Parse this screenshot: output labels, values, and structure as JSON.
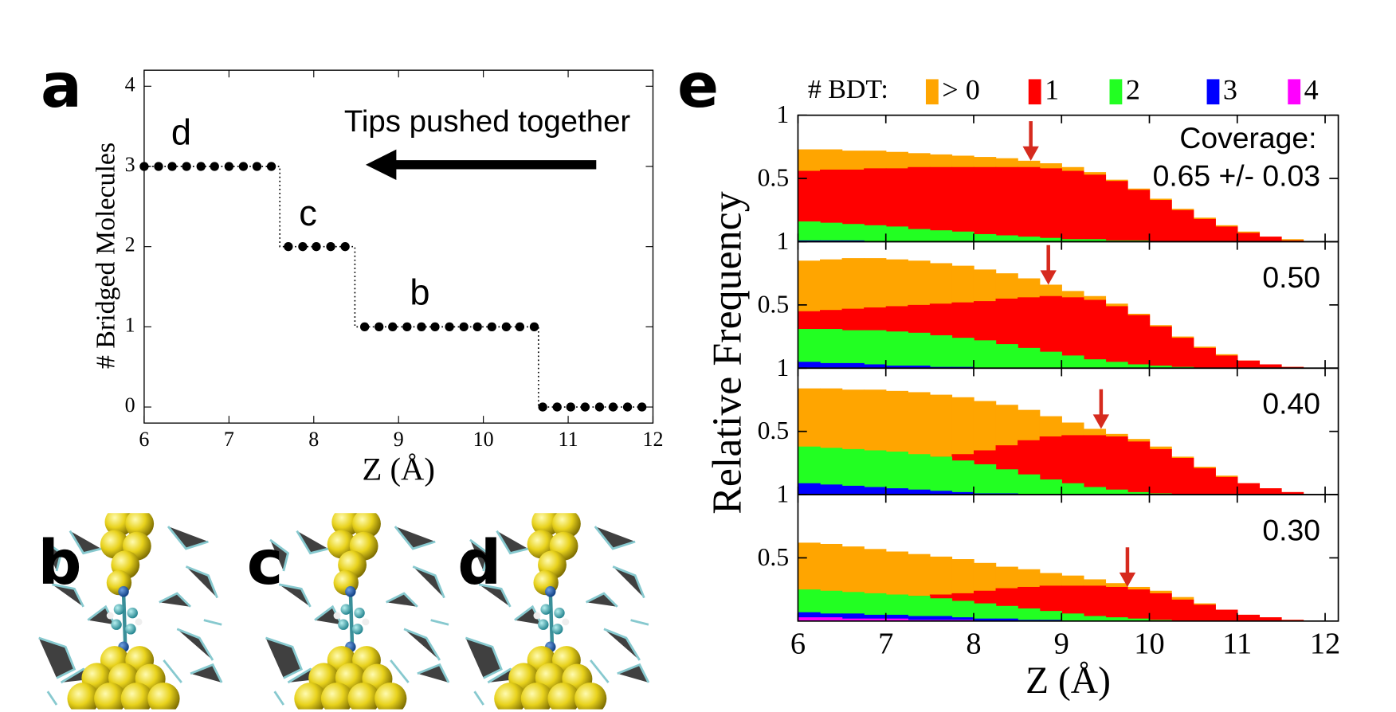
{
  "chart_data": [
    {
      "type": "step",
      "panel_label": "a",
      "xlabel": "Z (Å)",
      "ylabel": "# Bridged Molecules",
      "annotations": [
        "d",
        "c",
        "b",
        "Tips pushed together"
      ],
      "x": [
        6.0,
        6.17,
        6.33,
        6.5,
        6.67,
        6.83,
        7.0,
        7.17,
        7.33,
        7.5,
        7.7,
        7.87,
        8.03,
        8.2,
        8.37,
        8.6,
        8.77,
        8.93,
        9.1,
        9.27,
        9.43,
        9.6,
        9.77,
        9.93,
        10.1,
        10.27,
        10.43,
        10.6,
        10.7,
        10.87,
        11.03,
        11.2,
        11.37,
        11.53,
        11.7,
        11.87
      ],
      "values": [
        3,
        3,
        3,
        3,
        3,
        3,
        3,
        3,
        3,
        3,
        2,
        2,
        2,
        2,
        2,
        1,
        1,
        1,
        1,
        1,
        1,
        1,
        1,
        1,
        1,
        1,
        1,
        1,
        0,
        0,
        0,
        0,
        0,
        0,
        0,
        0
      ],
      "color": "#000000",
      "xlim": [
        6,
        12
      ],
      "ylim": [
        -0.2,
        4.2
      ],
      "xticks": [
        6,
        7,
        8,
        9,
        10,
        11,
        12
      ],
      "yticks": [
        0,
        1,
        2,
        3,
        4
      ]
    },
    {
      "type": "histogram",
      "panel_label": "e",
      "legend_title": "# BDT:",
      "xlabel": "Z (Å)",
      "ylabel": "Relative Frequency",
      "bins": [
        6,
        6.25,
        6.5,
        6.75,
        7,
        7.25,
        7.5,
        7.75,
        8,
        8.25,
        8.5,
        8.75,
        9,
        9.25,
        9.5,
        9.75,
        10,
        10.25,
        10.5,
        10.75,
        11,
        11.25,
        11.5,
        11.75,
        12
      ],
      "series": [
        {
          "name": "> 0",
          "color": "#ffa500"
        },
        {
          "name": "1",
          "color": "#ff0000"
        },
        {
          "name": "2",
          "color": "#22ff22"
        },
        {
          "name": "3",
          "color": "#0000ff"
        },
        {
          "name": "4",
          "color": "#ff00ff"
        }
      ],
      "xlim": [
        6,
        12.15
      ],
      "ylim": [
        0,
        1
      ],
      "xticks": [
        6,
        7,
        8,
        9,
        10,
        11,
        12
      ],
      "yticks": [
        0.5,
        1
      ],
      "arrow_color": "#d62a1e",
      "panels": [
        {
          "annotation": "Coverage:",
          "label": "0.65 +/- 0.03",
          "arrow_x": 8.65,
          "values": [
            [
              0.73,
              0.73,
              0.72,
              0.72,
              0.71,
              0.7,
              0.69,
              0.68,
              0.67,
              0.66,
              0.64,
              0.62,
              0.59,
              0.55,
              0.49,
              0.42,
              0.34,
              0.26,
              0.19,
              0.13,
              0.08,
              0.04,
              0.02,
              0.0
            ],
            [
              0.56,
              0.57,
              0.57,
              0.58,
              0.58,
              0.59,
              0.59,
              0.59,
              0.59,
              0.59,
              0.59,
              0.58,
              0.56,
              0.53,
              0.48,
              0.41,
              0.33,
              0.25,
              0.18,
              0.12,
              0.07,
              0.04,
              0.01,
              0.0
            ],
            [
              0.16,
              0.15,
              0.14,
              0.13,
              0.12,
              0.1,
              0.09,
              0.08,
              0.06,
              0.05,
              0.04,
              0.03,
              0.02,
              0.02,
              0.01,
              0.01,
              0,
              0,
              0,
              0,
              0,
              0,
              0,
              0
            ],
            [
              0.01,
              0.01,
              0.01,
              0,
              0,
              0,
              0,
              0,
              0,
              0,
              0,
              0,
              0,
              0,
              0,
              0,
              0,
              0,
              0,
              0,
              0,
              0,
              0,
              0
            ],
            [
              0,
              0,
              0,
              0,
              0,
              0,
              0,
              0,
              0,
              0,
              0,
              0,
              0,
              0,
              0,
              0,
              0,
              0,
              0,
              0,
              0,
              0,
              0,
              0
            ]
          ]
        },
        {
          "label": "0.50",
          "arrow_x": 8.85,
          "values": [
            [
              0.85,
              0.86,
              0.87,
              0.87,
              0.86,
              0.85,
              0.83,
              0.81,
              0.78,
              0.75,
              0.71,
              0.66,
              0.61,
              0.57,
              0.51,
              0.43,
              0.34,
              0.25,
              0.17,
              0.11,
              0.06,
              0.03,
              0.01,
              0.0
            ],
            [
              0.45,
              0.46,
              0.47,
              0.48,
              0.49,
              0.5,
              0.51,
              0.52,
              0.53,
              0.55,
              0.56,
              0.57,
              0.56,
              0.54,
              0.49,
              0.42,
              0.33,
              0.24,
              0.16,
              0.1,
              0.06,
              0.03,
              0.01,
              0.0
            ],
            [
              0.31,
              0.31,
              0.3,
              0.3,
              0.29,
              0.28,
              0.26,
              0.24,
              0.22,
              0.19,
              0.16,
              0.13,
              0.1,
              0.07,
              0.05,
              0.03,
              0.02,
              0.01,
              0,
              0,
              0,
              0,
              0,
              0
            ],
            [
              0.05,
              0.04,
              0.04,
              0.03,
              0.02,
              0.02,
              0.01,
              0.01,
              0,
              0,
              0,
              0,
              0,
              0,
              0,
              0,
              0,
              0,
              0,
              0,
              0,
              0,
              0,
              0
            ],
            [
              0,
              0,
              0,
              0,
              0,
              0,
              0,
              0,
              0,
              0,
              0,
              0,
              0,
              0,
              0,
              0,
              0,
              0,
              0,
              0,
              0,
              0,
              0,
              0
            ]
          ]
        },
        {
          "label": "0.40",
          "arrow_x": 9.45,
          "values": [
            [
              0.84,
              0.84,
              0.83,
              0.83,
              0.82,
              0.81,
              0.79,
              0.77,
              0.74,
              0.71,
              0.67,
              0.62,
              0.57,
              0.52,
              0.48,
              0.44,
              0.38,
              0.3,
              0.22,
              0.15,
              0.09,
              0.05,
              0.02,
              0.0
            ],
            [
              0.28,
              0.28,
              0.28,
              0.28,
              0.28,
              0.29,
              0.3,
              0.32,
              0.35,
              0.39,
              0.43,
              0.46,
              0.47,
              0.47,
              0.46,
              0.42,
              0.36,
              0.29,
              0.21,
              0.14,
              0.09,
              0.05,
              0.02,
              0.0
            ],
            [
              0.38,
              0.37,
              0.36,
              0.35,
              0.34,
              0.32,
              0.3,
              0.27,
              0.24,
              0.2,
              0.16,
              0.12,
              0.09,
              0.06,
              0.04,
              0.02,
              0.01,
              0,
              0,
              0,
              0,
              0,
              0,
              0
            ],
            [
              0.09,
              0.08,
              0.07,
              0.06,
              0.05,
              0.04,
              0.03,
              0.02,
              0.01,
              0.01,
              0,
              0,
              0,
              0,
              0,
              0,
              0,
              0,
              0,
              0,
              0,
              0,
              0,
              0
            ],
            [
              0,
              0,
              0,
              0,
              0,
              0,
              0,
              0,
              0,
              0,
              0,
              0,
              0,
              0,
              0,
              0,
              0,
              0,
              0,
              0,
              0,
              0,
              0,
              0
            ]
          ]
        },
        {
          "label": "0.30",
          "arrow_x": 9.75,
          "values": [
            [
              0.62,
              0.61,
              0.59,
              0.57,
              0.55,
              0.53,
              0.51,
              0.49,
              0.46,
              0.43,
              0.41,
              0.38,
              0.36,
              0.33,
              0.3,
              0.27,
              0.24,
              0.19,
              0.14,
              0.09,
              0.05,
              0.03,
              0.01,
              0.0
            ],
            [
              0.15,
              0.16,
              0.17,
              0.18,
              0.19,
              0.2,
              0.21,
              0.22,
              0.24,
              0.26,
              0.27,
              0.28,
              0.28,
              0.28,
              0.27,
              0.25,
              0.22,
              0.17,
              0.13,
              0.09,
              0.05,
              0.03,
              0.01,
              0.0
            ],
            [
              0.25,
              0.24,
              0.23,
              0.22,
              0.21,
              0.2,
              0.18,
              0.16,
              0.14,
              0.12,
              0.1,
              0.08,
              0.06,
              0.04,
              0.03,
              0.02,
              0.01,
              0,
              0,
              0,
              0,
              0,
              0,
              0
            ],
            [
              0.07,
              0.06,
              0.06,
              0.05,
              0.05,
              0.04,
              0.04,
              0.03,
              0.02,
              0.02,
              0.01,
              0.01,
              0,
              0,
              0,
              0,
              0,
              0,
              0,
              0,
              0,
              0,
              0,
              0
            ],
            [
              0.03,
              0.03,
              0.02,
              0.02,
              0.02,
              0.01,
              0.01,
              0.01,
              0,
              0,
              0,
              0,
              0,
              0,
              0,
              0,
              0,
              0,
              0,
              0,
              0,
              0,
              0,
              0
            ]
          ]
        }
      ]
    }
  ],
  "images": [
    {
      "label": "b"
    },
    {
      "label": "c"
    },
    {
      "label": "d"
    }
  ]
}
